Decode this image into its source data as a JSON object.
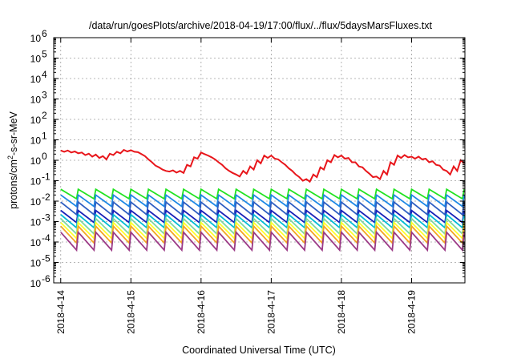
{
  "chart_data": {
    "type": "line",
    "title": "/data/run/goesPlots/archive/2018-04-19/17:00/flux/../flux/5daysMarsFluxes.txt",
    "xlabel": "Coordinated Universal Time (UTC)",
    "ylabel": {
      "base": "protons/cm",
      "sup": "2",
      "rest": "-s-sr-MeV"
    },
    "y_scale": "log",
    "ylim": [
      1e-06,
      1000000.0
    ],
    "xlim_days": [
      -0.1,
      5.76
    ],
    "x_origin": "2018-4-14",
    "x_ticks": [
      {
        "label": "2018-4-14",
        "day": 0
      },
      {
        "label": "2018-4-15",
        "day": 1
      },
      {
        "label": "2018-4-16",
        "day": 2
      },
      {
        "label": "2018-4-17",
        "day": 3
      },
      {
        "label": "2018-4-18",
        "day": 4
      },
      {
        "label": "2018-4-19",
        "day": 5
      }
    ],
    "y_ticks": [
      {
        "mant": "10",
        "exp": "-6",
        "value": 1e-06
      },
      {
        "mant": "10",
        "exp": "-5",
        "value": 1e-05
      },
      {
        "mant": "10",
        "exp": "-4",
        "value": 0.0001
      },
      {
        "mant": "10",
        "exp": "-3",
        "value": 0.001
      },
      {
        "mant": "10",
        "exp": "-2",
        "value": 0.01
      },
      {
        "mant": "10",
        "exp": "-1",
        "value": 0.1
      },
      {
        "mant": "10",
        "exp": "0",
        "value": 1
      },
      {
        "mant": "10",
        "exp": "1",
        "value": 10
      },
      {
        "mant": "10",
        "exp": "2",
        "value": 100
      },
      {
        "mant": "10",
        "exp": "3",
        "value": 1000
      },
      {
        "mant": "10",
        "exp": "4",
        "value": 10000
      },
      {
        "mant": "10",
        "exp": "5",
        "value": 100000
      },
      {
        "mant": "10",
        "exp": "6",
        "value": 1000000
      }
    ],
    "grid": true,
    "legend": "none",
    "series": [
      {
        "color": "#e8161b",
        "day": [
          0.0,
          0.05,
          0.1,
          0.15,
          0.2,
          0.25,
          0.3,
          0.35,
          0.4,
          0.45,
          0.5,
          0.55,
          0.6,
          0.65,
          0.7,
          0.75,
          0.8,
          0.85,
          0.9,
          0.95,
          1.0,
          1.05,
          1.1,
          1.15,
          1.2,
          1.25,
          1.3,
          1.35,
          1.4,
          1.45,
          1.5,
          1.55,
          1.6,
          1.65,
          1.7,
          1.75,
          1.8,
          1.85,
          1.9,
          1.95,
          2.0,
          2.05,
          2.1,
          2.15,
          2.2,
          2.25,
          2.3,
          2.35,
          2.4,
          2.45,
          2.5,
          2.55,
          2.6,
          2.65,
          2.7,
          2.75,
          2.8,
          2.85,
          2.9,
          2.95,
          3.0,
          3.05,
          3.1,
          3.15,
          3.2,
          3.25,
          3.3,
          3.35,
          3.4,
          3.45,
          3.5,
          3.55,
          3.6,
          3.65,
          3.7,
          3.75,
          3.8,
          3.85,
          3.9,
          3.95,
          4.0,
          4.05,
          4.1,
          4.15,
          4.2,
          4.25,
          4.3,
          4.35,
          4.4,
          4.45,
          4.5,
          4.55,
          4.6,
          4.65,
          4.7,
          4.75,
          4.8,
          4.85,
          4.9,
          4.95,
          5.0,
          5.05,
          5.1,
          5.15,
          5.2,
          5.25,
          5.3,
          5.35,
          5.4,
          5.45,
          5.5,
          5.55,
          5.6,
          5.65,
          5.7,
          5.75
        ],
        "value": [
          3.0,
          2.6,
          3.0,
          2.4,
          2.7,
          2.2,
          2.4,
          1.8,
          2.1,
          1.5,
          1.9,
          1.3,
          1.6,
          1.1,
          2.1,
          1.8,
          2.6,
          2.2,
          3.2,
          2.7,
          3.1,
          2.6,
          2.5,
          2.0,
          1.6,
          1.1,
          0.8,
          0.55,
          0.45,
          0.35,
          0.3,
          0.28,
          0.32,
          0.25,
          0.3,
          0.24,
          0.6,
          0.5,
          1.4,
          1.2,
          2.4,
          2.0,
          1.7,
          1.4,
          1.1,
          0.8,
          0.6,
          0.4,
          0.3,
          0.24,
          0.2,
          0.16,
          0.3,
          0.22,
          0.5,
          0.35,
          1.0,
          0.7,
          1.7,
          1.3,
          1.7,
          1.2,
          1.1,
          0.8,
          0.6,
          0.4,
          0.3,
          0.2,
          0.15,
          0.1,
          0.12,
          0.09,
          0.2,
          0.15,
          0.45,
          0.35,
          1.0,
          0.8,
          1.8,
          1.4,
          1.7,
          1.2,
          1.3,
          0.8,
          0.8,
          0.5,
          0.45,
          0.3,
          0.22,
          0.15,
          0.16,
          0.12,
          0.3,
          0.2,
          0.8,
          0.6,
          1.7,
          1.3,
          1.8,
          1.4,
          1.5,
          1.2,
          1.5,
          1.1,
          1.2,
          0.8,
          0.9,
          0.6,
          0.55,
          0.35,
          0.3,
          0.2,
          0.5,
          0.3,
          1.0,
          0.7
        ]
      },
      {
        "color": "#22e322",
        "peak": 0.038,
        "trough": 0.013,
        "period_days": 0.25,
        "x_start_day": 0.0,
        "x_end_day": 5.75
      },
      {
        "color": "#1e88e5",
        "peak": 0.02,
        "trough": 0.0055,
        "period_days": 0.25,
        "x_start_day": 0.0,
        "x_end_day": 5.75
      },
      {
        "color": "#2f5fc2",
        "peak": 0.009,
        "trough": 0.0022,
        "period_days": 0.25,
        "x_start_day": 0.0,
        "x_end_day": 5.75
      },
      {
        "color": "#1820b8",
        "peak": 0.0035,
        "trough": 0.0009,
        "period_days": 0.25,
        "x_start_day": 0.0,
        "x_end_day": 5.75
      },
      {
        "color": "#00bcd4",
        "peak": 0.0022,
        "trough": 0.0005,
        "period_days": 0.25,
        "x_start_day": 0.0,
        "x_end_day": 5.75
      },
      {
        "color": "#80d8a0",
        "peak": 0.0014,
        "trough": 0.00025,
        "period_days": 0.25,
        "x_start_day": 0.0,
        "x_end_day": 5.75
      },
      {
        "color": "#ffff2a",
        "peak": 0.0009,
        "trough": 0.00015,
        "period_days": 0.25,
        "x_start_day": 0.0,
        "x_end_day": 5.75
      },
      {
        "color": "#f5a623",
        "peak": 0.0006,
        "trough": 9e-05,
        "period_days": 0.25,
        "x_start_day": 0.0,
        "x_end_day": 5.75
      },
      {
        "color": "#9c3a86",
        "peak": 0.0003,
        "trough": 4e-05,
        "period_days": 0.25,
        "x_start_day": 0.0,
        "x_end_day": 5.75
      }
    ]
  }
}
